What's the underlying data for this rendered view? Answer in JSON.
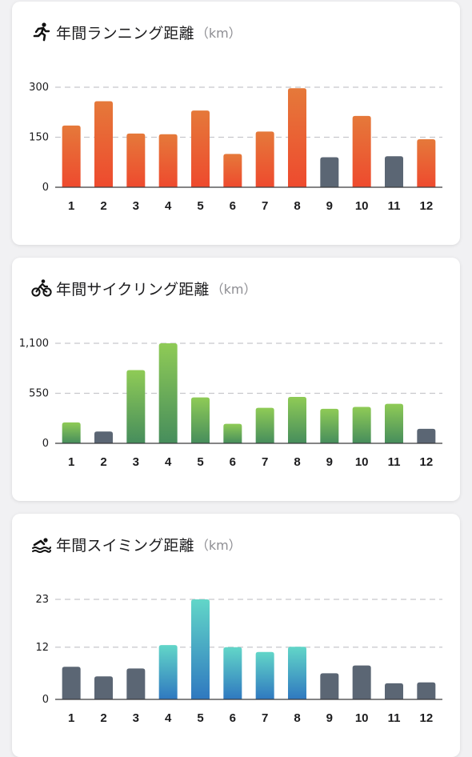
{
  "colors": {
    "inactive_bar": "#5b6674",
    "grid": "#c7c7cc",
    "axis": "#3a3a3c"
  },
  "cards": [
    {
      "icon": "running-icon",
      "title": "年間ランニング距離",
      "unit": "（km）",
      "accent_top": "#e5793a",
      "accent_bottom": "#ee4a2e",
      "chart_data": {
        "type": "bar",
        "categories": [
          "1",
          "2",
          "3",
          "4",
          "5",
          "6",
          "7",
          "8",
          "9",
          "10",
          "11",
          "12"
        ],
        "values": [
          185,
          258,
          161,
          159,
          230,
          100,
          167,
          297,
          90,
          214,
          93,
          144
        ],
        "inactive": [
          false,
          false,
          false,
          false,
          false,
          false,
          false,
          false,
          true,
          false,
          true,
          false
        ],
        "ylim": [
          0,
          300
        ],
        "yticks": [
          0,
          150,
          300
        ],
        "ytick_labels": [
          "0",
          "150",
          "300"
        ],
        "xlabel": "",
        "ylabel": "",
        "grid": true
      }
    },
    {
      "icon": "cycling-icon",
      "title": "年間サイクリング距離",
      "unit": "（km）",
      "accent_top": "#8fcb56",
      "accent_bottom": "#468d5c",
      "chart_data": {
        "type": "bar",
        "categories": [
          "1",
          "2",
          "3",
          "4",
          "5",
          "6",
          "7",
          "8",
          "9",
          "10",
          "11",
          "12"
        ],
        "values": [
          230,
          130,
          805,
          1100,
          505,
          215,
          390,
          510,
          380,
          400,
          435,
          160
        ],
        "inactive": [
          false,
          true,
          false,
          false,
          false,
          false,
          false,
          false,
          false,
          false,
          false,
          true
        ],
        "ylim": [
          0,
          1100
        ],
        "yticks": [
          0,
          550,
          1100
        ],
        "ytick_labels": [
          "0",
          "550",
          "1,100"
        ],
        "xlabel": "",
        "ylabel": "",
        "grid": true
      }
    },
    {
      "icon": "swimming-icon",
      "title": "年間スイミング距離",
      "unit": "（km）",
      "accent_top": "#62d6c8",
      "accent_bottom": "#2f78c0",
      "chart_data": {
        "type": "bar",
        "categories": [
          "1",
          "2",
          "3",
          "4",
          "5",
          "6",
          "7",
          "8",
          "9",
          "10",
          "11",
          "12"
        ],
        "values": [
          7.5,
          5.3,
          7.1,
          12.5,
          23,
          12,
          10.9,
          12.1,
          6,
          7.8,
          3.7,
          3.9
        ],
        "inactive": [
          true,
          true,
          true,
          false,
          false,
          false,
          false,
          false,
          true,
          true,
          true,
          true
        ],
        "ylim": [
          0,
          23
        ],
        "yticks": [
          0,
          12,
          23
        ],
        "ytick_labels": [
          "0",
          "12",
          "23"
        ],
        "xlabel": "",
        "ylabel": "",
        "grid": true
      }
    }
  ]
}
